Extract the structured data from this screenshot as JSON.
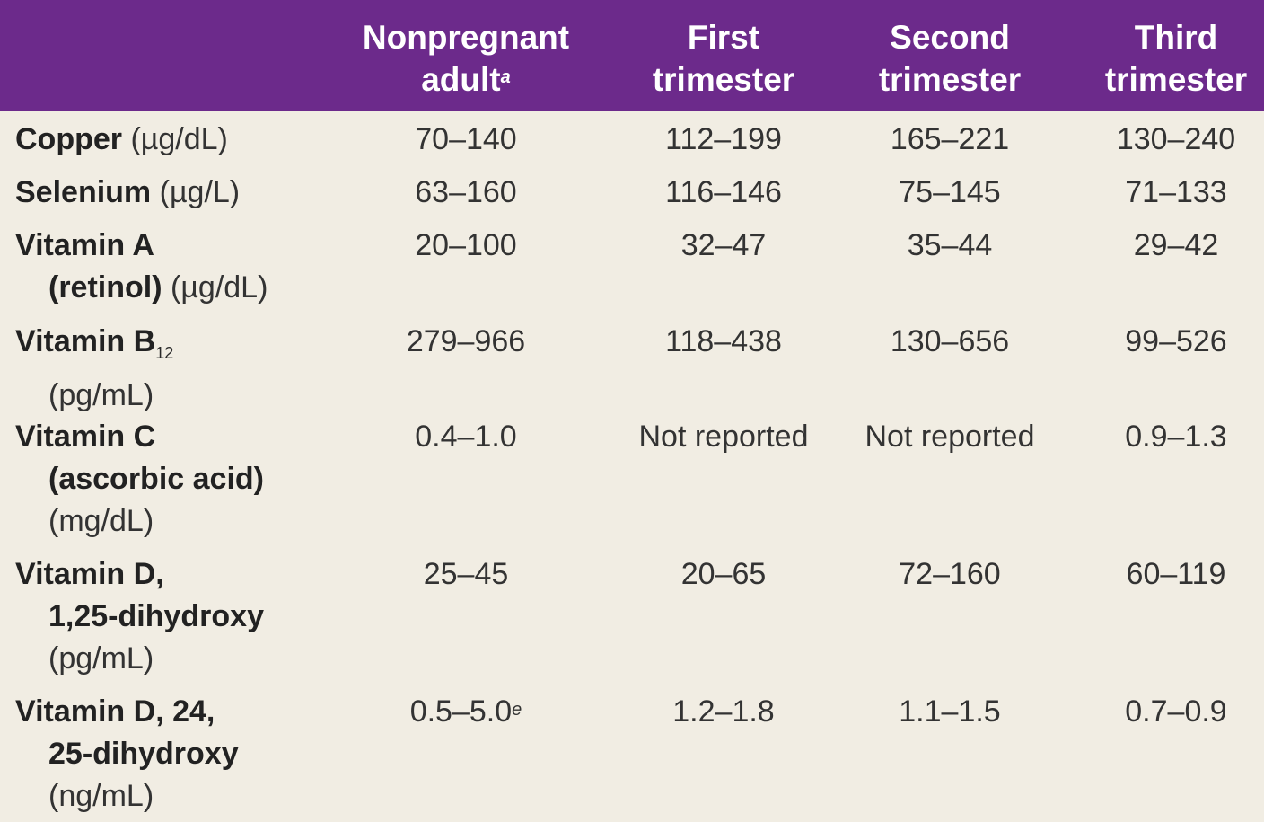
{
  "columns": [
    {
      "line1": "Nonpregnant",
      "line2": "adult",
      "note": "a"
    },
    {
      "line1": "First",
      "line2": "trimester",
      "note": ""
    },
    {
      "line1": "Second",
      "line2": "trimester",
      "note": ""
    },
    {
      "line1": "Third",
      "line2": "trimester",
      "note": ""
    }
  ],
  "rows": [
    {
      "label_bold": "Copper",
      "unit": "(µg/dL)",
      "values": [
        "70–140",
        "112–199",
        "165–221",
        "130–240"
      ]
    },
    {
      "label_bold": "Selenium",
      "unit": "(µg/L)",
      "values": [
        "63–160",
        "116–146",
        "75–145",
        "71–133"
      ]
    },
    {
      "label_bold": "Vitamin A",
      "label_bold2": "(retinol)",
      "unit": "(µg/dL)",
      "values": [
        "20–100",
        "32–47",
        "35–44",
        "29–42"
      ]
    },
    {
      "label_bold": "Vitamin B",
      "subscript": "12",
      "unit": "(pg/mL)",
      "values": [
        "279–966",
        "118–438",
        "130–656",
        "99–526"
      ]
    },
    {
      "label_bold": "Vitamin C",
      "label_bold2": "(ascorbic acid)",
      "unit": "(mg/dL)",
      "values": [
        "0.4–1.0",
        "Not reported",
        "Not reported",
        "0.9–1.3"
      ]
    },
    {
      "label_bold": "Vitamin D,",
      "label_bold2": "1,25-dihydroxy",
      "unit": "(pg/mL)",
      "values": [
        "25–45",
        "20–65",
        "72–160",
        "60–119"
      ]
    },
    {
      "label_bold": "Vitamin D, 24,",
      "label_bold2": "25-dihydroxy",
      "unit": "(ng/mL)",
      "values": [
        "0.5–5.0",
        "1.2–1.8",
        "1.1–1.5",
        "0.7–0.9"
      ],
      "first_note": "e"
    }
  ]
}
